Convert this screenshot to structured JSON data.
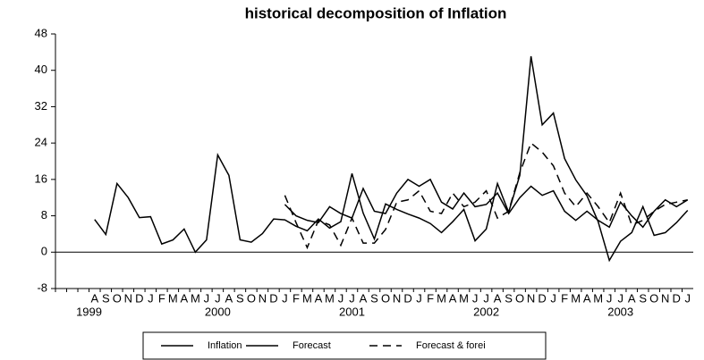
{
  "chart_data": {
    "type": "line",
    "title": "historical decomposition of Inflation",
    "categories": [
      null,
      null,
      null,
      "A",
      "S",
      "O",
      "N",
      "D",
      "J",
      "F",
      "M",
      "A",
      "M",
      "J",
      "J",
      "A",
      "S",
      "O",
      "N",
      "D",
      "J",
      "F",
      "M",
      "A",
      "M",
      "J",
      "J",
      "A",
      "S",
      "O",
      "N",
      "D",
      "J",
      "F",
      "M",
      "A",
      "M",
      "J",
      "J",
      "A",
      "S",
      "O",
      "N",
      "D",
      "J",
      "F",
      "M",
      "A",
      "M",
      "J",
      "J",
      "A",
      "S",
      "O",
      "N",
      "D",
      "J"
    ],
    "year_labels": [
      "1999",
      "2000",
      "2001",
      "2002",
      "2003"
    ],
    "series": [
      {
        "name": "Inflation",
        "color": "#000000",
        "dashed": false,
        "values": [
          null,
          null,
          null,
          7.2,
          3.9,
          15.1,
          12,
          7.6,
          7.8,
          1.8,
          2.7,
          5.1,
          0,
          2.7,
          21.4,
          16.9,
          2.7,
          2.2,
          4.1,
          7.3,
          7.1,
          5.7,
          4.7,
          7.3,
          5.3,
          6.7,
          17.3,
          8.6,
          2.9,
          10.6,
          9.4,
          8.4,
          7.5,
          6.3,
          4.3,
          6.7,
          9.4,
          2.5,
          5.1,
          15.1,
          8.8,
          16.9,
          43.1,
          28,
          30.6,
          20.6,
          15.9,
          12.4,
          6.7,
          -1.8,
          2.4,
          4.3,
          10,
          3.7,
          4.3,
          6.5,
          9.2
        ]
      },
      {
        "name": "Forecast",
        "color": "#000000",
        "dashed": false,
        "values": [
          null,
          null,
          null,
          null,
          null,
          null,
          null,
          null,
          null,
          null,
          null,
          null,
          null,
          null,
          null,
          null,
          null,
          null,
          null,
          null,
          10.5,
          8,
          7,
          6.5,
          10,
          8.5,
          7.5,
          14,
          9,
          8.5,
          13,
          16,
          14.5,
          16,
          11,
          9.5,
          13,
          10,
          10.5,
          13,
          8.5,
          12,
          14.5,
          12.5,
          13.5,
          9,
          7,
          9,
          7,
          5.5,
          11,
          8,
          5.5,
          9,
          11.5,
          10,
          11.5
        ]
      },
      {
        "name": "Forecast & forei",
        "color": "#000000",
        "dashed": true,
        "values": [
          null,
          null,
          null,
          null,
          null,
          null,
          null,
          null,
          null,
          null,
          null,
          null,
          null,
          null,
          null,
          null,
          null,
          null,
          null,
          null,
          12.5,
          6.5,
          1,
          7,
          6,
          1.5,
          7.5,
          2,
          2,
          5,
          11,
          11.5,
          13.5,
          9,
          8.5,
          13,
          10,
          11,
          13.5,
          7.5,
          9,
          17.5,
          24,
          22,
          19,
          13,
          10,
          13,
          10,
          6.5,
          13,
          6,
          7,
          9,
          10.5,
          11,
          11.5
        ]
      }
    ],
    "ylim": [
      -8,
      48
    ],
    "yticks": [
      -8,
      0,
      8,
      16,
      24,
      32,
      40,
      48
    ],
    "zero_line": true,
    "grid": false,
    "legend": "bottom"
  }
}
